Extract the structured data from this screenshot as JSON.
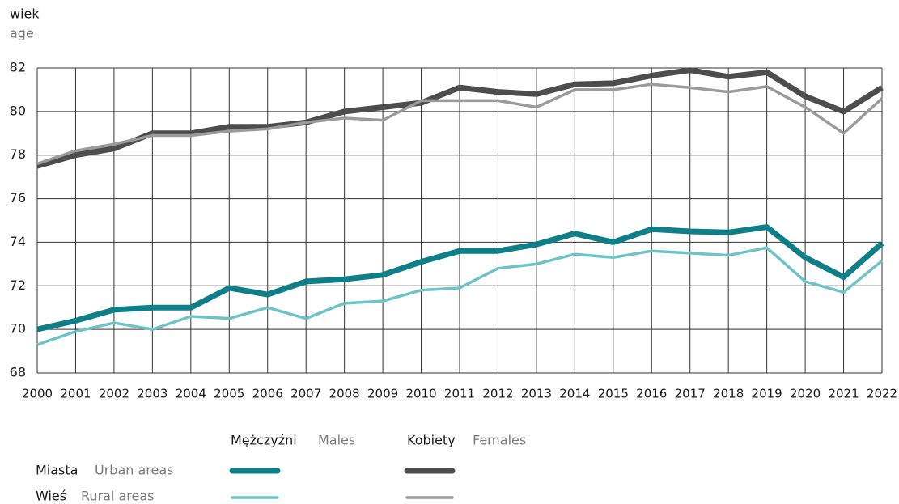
{
  "chart_data": {
    "type": "line",
    "y_label": "wiek",
    "y_label_en": "age",
    "x": [
      2000,
      2001,
      2002,
      2003,
      2004,
      2005,
      2006,
      2007,
      2008,
      2009,
      2010,
      2011,
      2012,
      2013,
      2014,
      2015,
      2016,
      2017,
      2018,
      2019,
      2020,
      2021,
      2022
    ],
    "xlim": [
      2000,
      2022
    ],
    "xticks": [
      2000,
      2001,
      2002,
      2003,
      2004,
      2005,
      2006,
      2007,
      2008,
      2009,
      2010,
      2011,
      2012,
      2013,
      2014,
      2015,
      2016,
      2017,
      2018,
      2019,
      2020,
      2021,
      2022
    ],
    "ylim": [
      68,
      82
    ],
    "yticks": [
      68,
      70,
      72,
      74,
      76,
      78,
      80,
      82
    ],
    "grid": true,
    "legend": {
      "columns": [
        "Mężczyźni",
        "Kobiety"
      ],
      "columns_en": [
        "Males",
        "Females"
      ],
      "rows": [
        "Miasta",
        "Wieś"
      ],
      "rows_en": [
        "Urban areas",
        "Rural areas"
      ]
    },
    "series": [
      {
        "color": "#0e7f88",
        "values": [
          70.0,
          70.4,
          70.9,
          71.0,
          71.0,
          71.9,
          71.6,
          72.2,
          72.3,
          72.5,
          73.1,
          73.6,
          73.6,
          73.9,
          74.4,
          74.0,
          74.6,
          74.5,
          74.45,
          74.7,
          73.3,
          72.4,
          73.95
        ]
      },
      {
        "color": "#4d4d4d",
        "values": [
          77.5,
          78.0,
          78.3,
          79.0,
          79.0,
          79.3,
          79.3,
          79.5,
          80.0,
          80.2,
          80.4,
          81.1,
          80.9,
          80.8,
          81.25,
          81.3,
          81.65,
          81.9,
          81.6,
          81.8,
          80.7,
          80.0,
          81.1
        ]
      },
      {
        "color": "#6cc3c8",
        "values": [
          69.3,
          69.9,
          70.3,
          70.0,
          70.6,
          70.5,
          71.0,
          70.5,
          71.2,
          71.3,
          71.8,
          71.9,
          72.8,
          73.0,
          73.45,
          73.3,
          73.6,
          73.5,
          73.4,
          73.75,
          72.2,
          71.7,
          73.15
        ]
      },
      {
        "color": "#9b9b9b",
        "values": [
          77.6,
          78.2,
          78.5,
          78.9,
          78.9,
          79.1,
          79.2,
          79.5,
          79.7,
          79.6,
          80.5,
          80.5,
          80.5,
          80.2,
          81.0,
          81.0,
          81.25,
          81.1,
          80.9,
          81.15,
          80.2,
          79.0,
          80.6
        ]
      }
    ]
  }
}
